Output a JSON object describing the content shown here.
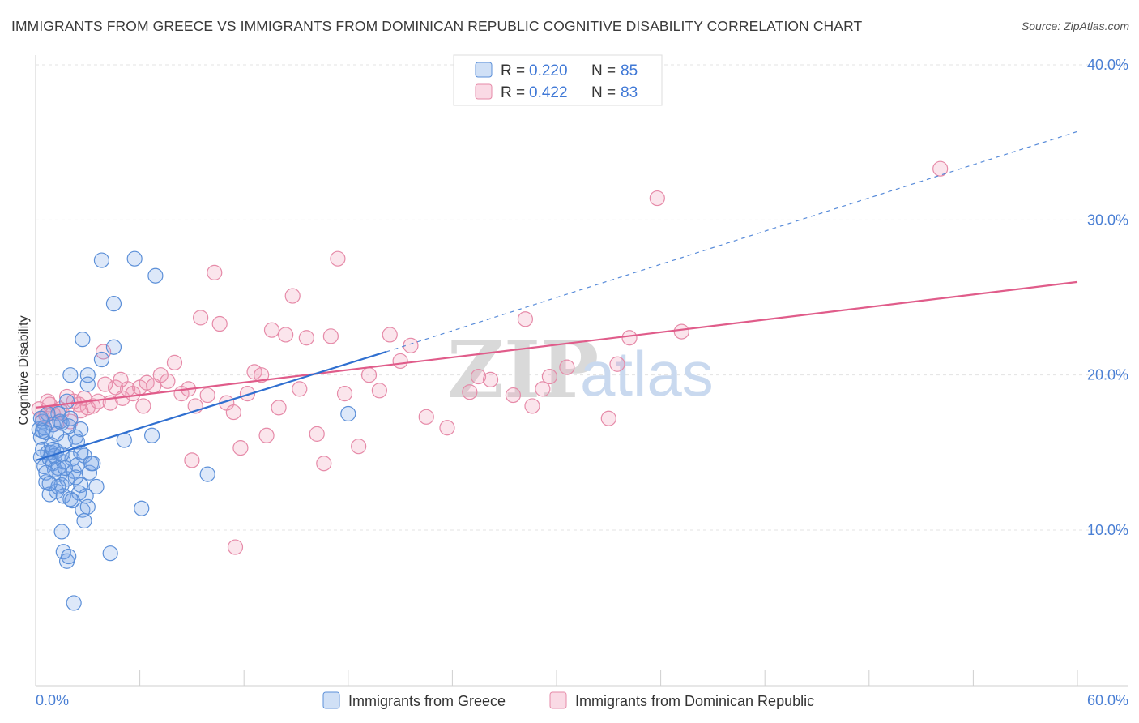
{
  "title": "IMMIGRANTS FROM GREECE VS IMMIGRANTS FROM DOMINICAN REPUBLIC COGNITIVE DISABILITY CORRELATION CHART",
  "source": "Source: ZipAtlas.com",
  "watermark": {
    "zip": "ZIP",
    "atlas": "atlas"
  },
  "legend": {
    "r_label": "R =",
    "n_label": "N =",
    "series": [
      {
        "r": "0.220",
        "n": "85"
      },
      {
        "r": "0.422",
        "n": "83"
      }
    ]
  },
  "bottom_legend": [
    "Immigrants from Greece",
    "Immigrants from Dominican Republic"
  ],
  "colors": {
    "greece_fill": "rgba(120,165,230,0.25)",
    "greece_stroke": "#5b8fd8",
    "greece_line": "#2f6fd0",
    "dr_fill": "rgba(240,150,180,0.25)",
    "dr_stroke": "#e68aa8",
    "dr_line": "#e05c8a",
    "tick": "#4a7fd4",
    "grid": "#e3e3e3"
  },
  "chart_data": {
    "type": "scatter",
    "title": "IMMIGRANTS FROM GREECE VS IMMIGRANTS FROM DOMINICAN REPUBLIC COGNITIVE DISABILITY CORRELATION CHART",
    "xlabel": "",
    "ylabel": "Cognitive Disability",
    "xlim": [
      0,
      60
    ],
    "ylim": [
      0,
      42
    ],
    "x_ticks": [
      "0.0%",
      "60.0%"
    ],
    "y_ticks": [
      {
        "value": 10,
        "label": "10.0%"
      },
      {
        "value": 20,
        "label": "20.0%"
      },
      {
        "value": 30,
        "label": "30.0%"
      },
      {
        "value": 40,
        "label": "40.0%"
      }
    ],
    "grid": true,
    "legend_position": "top-center",
    "series": [
      {
        "name": "Immigrants from Greece",
        "r": 0.22,
        "n": 85,
        "trend": {
          "x0": 0.0,
          "y0": 14.5,
          "x1": 20.2,
          "y1": 21.5,
          "dashed_to_x": 60.0,
          "dashed_to_y": 35.7
        },
        "points": [
          [
            0.2,
            16.5
          ],
          [
            0.3,
            16.0
          ],
          [
            0.4,
            15.2
          ],
          [
            0.3,
            14.7
          ],
          [
            0.5,
            14.1
          ],
          [
            0.6,
            16.3
          ],
          [
            0.7,
            15.0
          ],
          [
            0.6,
            13.1
          ],
          [
            0.8,
            14.6
          ],
          [
            0.4,
            17.0
          ],
          [
            0.9,
            15.5
          ],
          [
            1.0,
            14.3
          ],
          [
            0.8,
            12.3
          ],
          [
            1.1,
            13.9
          ],
          [
            1.2,
            15.1
          ],
          [
            1.0,
            16.8
          ],
          [
            1.3,
            14.0
          ],
          [
            1.2,
            12.5
          ],
          [
            1.4,
            13.6
          ],
          [
            1.5,
            12.9
          ],
          [
            1.3,
            17.5
          ],
          [
            1.6,
            14.4
          ],
          [
            1.5,
            16.9
          ],
          [
            1.7,
            15.7
          ],
          [
            1.8,
            13.3
          ],
          [
            1.6,
            12.2
          ],
          [
            2.0,
            12.0
          ],
          [
            2.1,
            14.6
          ],
          [
            2.2,
            13.8
          ],
          [
            2.0,
            17.2
          ],
          [
            2.4,
            14.2
          ],
          [
            2.5,
            12.4
          ],
          [
            2.3,
            16.0
          ],
          [
            2.6,
            12.9
          ],
          [
            2.7,
            11.3
          ],
          [
            2.8,
            14.8
          ],
          [
            2.9,
            12.2
          ],
          [
            3.0,
            11.5
          ],
          [
            3.1,
            13.7
          ],
          [
            3.3,
            14.3
          ],
          [
            0.7,
            17.5
          ],
          [
            0.5,
            16.6
          ],
          [
            0.9,
            15.0
          ],
          [
            1.1,
            14.8
          ],
          [
            1.4,
            17.0
          ],
          [
            1.9,
            16.7
          ],
          [
            2.6,
            16.5
          ],
          [
            1.5,
            9.9
          ],
          [
            1.6,
            8.6
          ],
          [
            1.8,
            8.0
          ],
          [
            1.9,
            8.3
          ],
          [
            2.2,
            5.3
          ],
          [
            2.8,
            10.6
          ],
          [
            4.3,
            8.5
          ],
          [
            6.1,
            11.4
          ],
          [
            5.1,
            15.8
          ],
          [
            6.7,
            16.1
          ],
          [
            3.0,
            20.0
          ],
          [
            3.8,
            21.0
          ],
          [
            4.5,
            21.8
          ],
          [
            2.7,
            22.3
          ],
          [
            3.0,
            19.4
          ],
          [
            4.5,
            24.6
          ],
          [
            3.8,
            27.4
          ],
          [
            5.7,
            27.5
          ],
          [
            6.9,
            26.4
          ],
          [
            9.9,
            13.6
          ],
          [
            18.0,
            17.5
          ],
          [
            2.0,
            20.0
          ],
          [
            1.8,
            18.3
          ],
          [
            0.6,
            13.7
          ],
          [
            1.3,
            12.8
          ],
          [
            2.1,
            11.9
          ],
          [
            3.2,
            14.3
          ],
          [
            0.4,
            16.4
          ],
          [
            1.0,
            15.2
          ],
          [
            1.7,
            14.0
          ],
          [
            2.3,
            13.4
          ],
          [
            2.4,
            15.7
          ],
          [
            3.5,
            12.8
          ],
          [
            0.8,
            13.0
          ],
          [
            1.2,
            16.2
          ],
          [
            1.5,
            14.9
          ],
          [
            2.6,
            15.0
          ],
          [
            0.3,
            17.2
          ]
        ]
      },
      {
        "name": "Immigrants from Dominican Republic",
        "r": 0.422,
        "n": 83,
        "trend": {
          "x0": 0.0,
          "y0": 17.9,
          "x1": 60.0,
          "y1": 26.0
        },
        "points": [
          [
            0.2,
            17.8
          ],
          [
            0.4,
            17.2
          ],
          [
            0.6,
            17.4
          ],
          [
            0.8,
            18.1
          ],
          [
            1.0,
            17.5
          ],
          [
            1.2,
            16.9
          ],
          [
            1.5,
            17.6
          ],
          [
            1.8,
            18.6
          ],
          [
            2.0,
            17.0
          ],
          [
            2.2,
            18.3
          ],
          [
            2.5,
            18.1
          ],
          [
            2.8,
            18.5
          ],
          [
            3.0,
            17.9
          ],
          [
            3.3,
            18.0
          ],
          [
            3.6,
            18.3
          ],
          [
            4.0,
            19.4
          ],
          [
            4.3,
            18.2
          ],
          [
            4.6,
            19.2
          ],
          [
            5.0,
            18.5
          ],
          [
            5.3,
            19.1
          ],
          [
            5.6,
            18.8
          ],
          [
            6.0,
            19.2
          ],
          [
            6.4,
            19.5
          ],
          [
            6.8,
            19.3
          ],
          [
            7.2,
            20.0
          ],
          [
            7.6,
            19.6
          ],
          [
            8.0,
            20.8
          ],
          [
            8.4,
            18.8
          ],
          [
            8.8,
            19.1
          ],
          [
            9.2,
            18.0
          ],
          [
            9.5,
            23.7
          ],
          [
            9.9,
            18.7
          ],
          [
            10.3,
            26.6
          ],
          [
            10.6,
            23.3
          ],
          [
            11.0,
            18.2
          ],
          [
            11.4,
            17.6
          ],
          [
            11.8,
            15.3
          ],
          [
            12.2,
            18.8
          ],
          [
            12.6,
            20.2
          ],
          [
            13.0,
            20.0
          ],
          [
            13.3,
            16.1
          ],
          [
            13.6,
            22.9
          ],
          [
            14.0,
            17.9
          ],
          [
            14.4,
            22.6
          ],
          [
            14.8,
            25.1
          ],
          [
            15.2,
            19.1
          ],
          [
            15.6,
            22.4
          ],
          [
            16.2,
            16.2
          ],
          [
            16.6,
            14.3
          ],
          [
            17.0,
            22.5
          ],
          [
            17.4,
            27.5
          ],
          [
            17.8,
            18.8
          ],
          [
            18.6,
            15.4
          ],
          [
            19.2,
            20.0
          ],
          [
            19.8,
            19.0
          ],
          [
            20.4,
            22.6
          ],
          [
            21.0,
            20.9
          ],
          [
            21.6,
            21.9
          ],
          [
            22.5,
            17.3
          ],
          [
            23.7,
            16.6
          ],
          [
            25.0,
            18.9
          ],
          [
            25.5,
            19.9
          ],
          [
            26.2,
            19.7
          ],
          [
            27.5,
            18.7
          ],
          [
            28.2,
            23.6
          ],
          [
            28.6,
            18.0
          ],
          [
            29.2,
            19.1
          ],
          [
            29.6,
            19.9
          ],
          [
            30.6,
            20.5
          ],
          [
            33.0,
            17.2
          ],
          [
            33.5,
            20.7
          ],
          [
            34.2,
            22.4
          ],
          [
            35.8,
            31.4
          ],
          [
            37.2,
            22.8
          ],
          [
            52.1,
            33.3
          ],
          [
            9.0,
            14.5
          ],
          [
            11.5,
            8.9
          ],
          [
            6.2,
            18.0
          ],
          [
            3.9,
            21.5
          ],
          [
            2.6,
            17.7
          ],
          [
            1.4,
            17.8
          ],
          [
            0.7,
            18.3
          ],
          [
            4.9,
            19.7
          ]
        ]
      }
    ]
  }
}
